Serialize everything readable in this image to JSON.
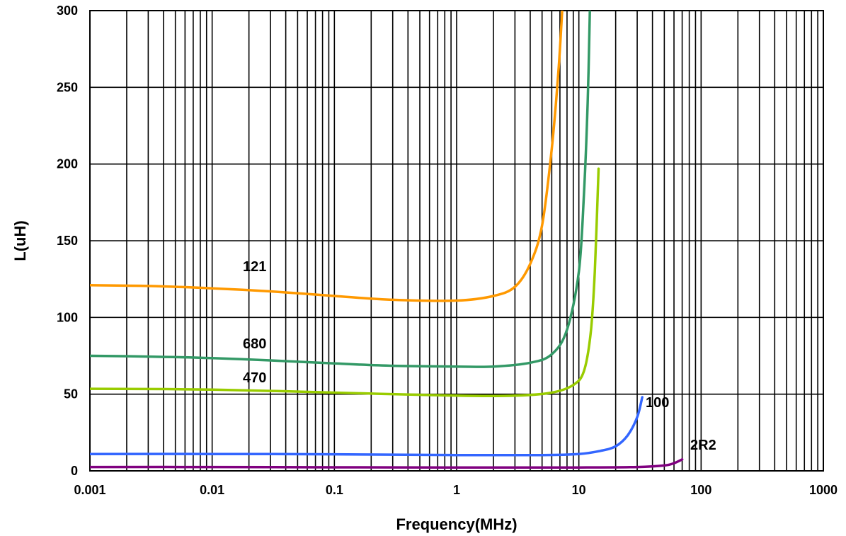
{
  "chart_data": {
    "type": "line",
    "title": "",
    "xlabel": "Frequency(MHz)",
    "ylabel": "L(uH)",
    "x_scale": "log",
    "xlim": [
      0.001,
      1000
    ],
    "ylim": [
      0,
      300
    ],
    "x_ticks": [
      "0.001",
      "0.01",
      "0.1",
      "1",
      "10",
      "100",
      "1000"
    ],
    "y_ticks": [
      "0",
      "50",
      "100",
      "150",
      "200",
      "250",
      "300"
    ],
    "grid": true,
    "legend": "inline labels",
    "series": [
      {
        "name": "121",
        "color": "#ff9900",
        "points": [
          [
            0.001,
            121
          ],
          [
            0.003,
            120.5
          ],
          [
            0.01,
            119
          ],
          [
            0.03,
            117
          ],
          [
            0.1,
            114
          ],
          [
            0.3,
            111.5
          ],
          [
            1,
            111
          ],
          [
            2,
            114
          ],
          [
            3,
            120
          ],
          [
            4,
            135
          ],
          [
            5,
            160
          ],
          [
            6,
            210
          ],
          [
            6.8,
            260
          ],
          [
            7.3,
            300
          ]
        ]
      },
      {
        "name": "680",
        "color": "#339966",
        "points": [
          [
            0.001,
            75
          ],
          [
            0.003,
            74.5
          ],
          [
            0.01,
            73.5
          ],
          [
            0.03,
            72
          ],
          [
            0.1,
            70
          ],
          [
            0.3,
            68.5
          ],
          [
            1,
            68
          ],
          [
            2,
            68
          ],
          [
            4,
            70.5
          ],
          [
            6,
            76
          ],
          [
            8,
            92
          ],
          [
            10,
            130
          ],
          [
            11,
            180
          ],
          [
            11.8,
            240
          ],
          [
            12.3,
            300
          ]
        ]
      },
      {
        "name": "470",
        "color": "#99cc00",
        "points": [
          [
            0.001,
            53.5
          ],
          [
            0.01,
            53
          ],
          [
            0.1,
            51
          ],
          [
            1,
            49
          ],
          [
            3,
            49
          ],
          [
            6,
            51
          ],
          [
            9,
            56
          ],
          [
            11,
            65
          ],
          [
            12.5,
            90
          ],
          [
            13.5,
            130
          ],
          [
            14.5,
            197
          ]
        ]
      },
      {
        "name": "100",
        "color": "#3366ff",
        "points": [
          [
            0.001,
            11
          ],
          [
            0.01,
            11
          ],
          [
            0.1,
            10.8
          ],
          [
            1,
            10.3
          ],
          [
            5,
            10.3
          ],
          [
            10,
            11
          ],
          [
            15,
            13
          ],
          [
            20,
            16
          ],
          [
            25,
            23
          ],
          [
            30,
            35
          ],
          [
            33,
            48
          ]
        ]
      },
      {
        "name": "2R2",
        "color": "#800080",
        "points": [
          [
            0.001,
            2.5
          ],
          [
            0.01,
            2.5
          ],
          [
            0.1,
            2.3
          ],
          [
            1,
            2.2
          ],
          [
            10,
            2.2
          ],
          [
            30,
            2.5
          ],
          [
            50,
            3.5
          ],
          [
            60,
            5
          ],
          [
            70,
            7.5
          ]
        ]
      }
    ]
  }
}
